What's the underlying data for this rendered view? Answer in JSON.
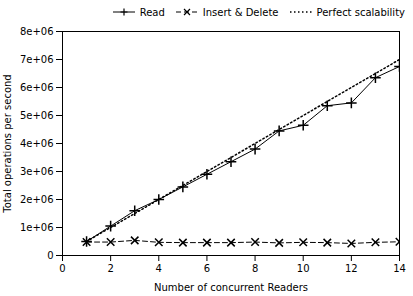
{
  "chart_data": {
    "type": "line",
    "xlabel": "Number of concurrent Readers",
    "ylabel": "Total operations per second",
    "xlim": [
      0,
      14
    ],
    "xticks": [
      0,
      2,
      4,
      6,
      8,
      10,
      12,
      14
    ],
    "ylim": [
      0,
      8000000
    ],
    "yticks": [
      0,
      {
        "value": 1000000,
        "label": "1e+06"
      },
      {
        "value": 2000000,
        "label": "2e+06"
      },
      {
        "value": 3000000,
        "label": "3e+06"
      },
      {
        "value": 4000000,
        "label": "4e+06"
      },
      {
        "value": 5000000,
        "label": "5e+06"
      },
      {
        "value": 6000000,
        "label": "6e+06"
      },
      {
        "value": 7000000,
        "label": "7e+06"
      },
      {
        "value": 8000000,
        "label": "8e+06"
      }
    ],
    "grid": false,
    "legend": "upper right",
    "series": [
      {
        "name": "Read",
        "color": "black",
        "line_style": "solid",
        "marker": "plus",
        "x": [
          1,
          2,
          3,
          4,
          5,
          6,
          7,
          8,
          9,
          10,
          11,
          12,
          13,
          14
        ],
        "values": [
          500000,
          1050000,
          1600000,
          2000000,
          2450000,
          2900000,
          3350000,
          3800000,
          4450000,
          4650000,
          5350000,
          5450000,
          6350000,
          6750000
        ]
      },
      {
        "name": "Insert & Delete",
        "color": "black",
        "line_style": "dashed",
        "marker": "times",
        "x": [
          1,
          2,
          3,
          4,
          5,
          6,
          7,
          8,
          9,
          10,
          11,
          12,
          13,
          14
        ],
        "values": [
          480000,
          480000,
          540000,
          470000,
          460000,
          460000,
          460000,
          480000,
          450000,
          470000,
          460000,
          430000,
          470000,
          490000
        ]
      },
      {
        "name": "Perfect scalability",
        "color": "black",
        "line_style": "dotted",
        "x": [
          1,
          14
        ],
        "values": [
          500000,
          7000000
        ]
      }
    ]
  }
}
